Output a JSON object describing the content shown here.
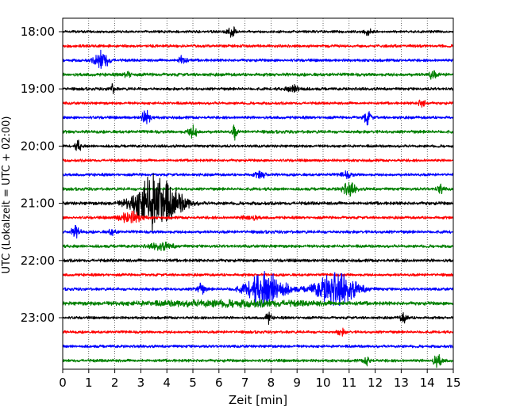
{
  "chart_data": {
    "type": "line",
    "xlabel": "Zeit  [min]",
    "ylabel": "UTC (Lokalzeit = UTC + 02:00)",
    "xlim": [
      0,
      15
    ],
    "x_ticks": [
      "0",
      "1",
      "2",
      "3",
      "4",
      "5",
      "6",
      "7",
      "8",
      "9",
      "10",
      "11",
      "12",
      "13",
      "14",
      "15"
    ],
    "y_ticks": [
      "18:00",
      "19:00",
      "20:00",
      "21:00",
      "22:00",
      "23:00"
    ],
    "grid": "vertical dotted",
    "trace_interval_minutes": 15,
    "start_time": "18:00",
    "trace_colors": [
      "#000000",
      "#ff0000",
      "#0000ff",
      "#008000"
    ],
    "traces": [
      {
        "start": "18:00",
        "color": "#000000",
        "noise": 0.32,
        "events": [
          {
            "t": 6.5,
            "amp": 1.3,
            "dur": 0.1
          },
          {
            "t": 11.7,
            "amp": 0.9,
            "dur": 0.1
          }
        ]
      },
      {
        "start": "18:15",
        "color": "#ff0000",
        "noise": 0.35,
        "events": []
      },
      {
        "start": "18:30",
        "color": "#0000ff",
        "noise": 0.35,
        "events": [
          {
            "t": 1.5,
            "amp": 2.3,
            "dur": 0.18
          },
          {
            "t": 4.6,
            "amp": 1.3,
            "dur": 0.1
          }
        ]
      },
      {
        "start": "18:45",
        "color": "#008000",
        "noise": 0.4,
        "events": [
          {
            "t": 2.5,
            "amp": 0.7,
            "dur": 0.1
          },
          {
            "t": 14.2,
            "amp": 1.0,
            "dur": 0.1
          }
        ]
      },
      {
        "start": "19:00",
        "color": "#000000",
        "noise": 0.35,
        "events": [
          {
            "t": 1.9,
            "amp": 1.0,
            "dur": 0.08
          },
          {
            "t": 8.9,
            "amp": 0.8,
            "dur": 0.2
          }
        ]
      },
      {
        "start": "19:15",
        "color": "#ff0000",
        "noise": 0.33,
        "events": [
          {
            "t": 13.8,
            "amp": 1.0,
            "dur": 0.1
          }
        ]
      },
      {
        "start": "19:30",
        "color": "#0000ff",
        "noise": 0.35,
        "events": [
          {
            "t": 3.2,
            "amp": 1.6,
            "dur": 0.12
          },
          {
            "t": 11.7,
            "amp": 1.6,
            "dur": 0.1
          }
        ]
      },
      {
        "start": "19:45",
        "color": "#008000",
        "noise": 0.38,
        "events": [
          {
            "t": 5.0,
            "amp": 1.4,
            "dur": 0.12
          },
          {
            "t": 6.6,
            "amp": 1.8,
            "dur": 0.06
          }
        ]
      },
      {
        "start": "20:00",
        "color": "#000000",
        "noise": 0.33,
        "events": [
          {
            "t": 0.6,
            "amp": 1.3,
            "dur": 0.08
          }
        ]
      },
      {
        "start": "20:15",
        "color": "#ff0000",
        "noise": 0.33,
        "events": []
      },
      {
        "start": "20:30",
        "color": "#0000ff",
        "noise": 0.34,
        "events": [
          {
            "t": 7.6,
            "amp": 0.8,
            "dur": 0.15
          },
          {
            "t": 10.9,
            "amp": 0.7,
            "dur": 0.15
          }
        ]
      },
      {
        "start": "20:45",
        "color": "#008000",
        "noise": 0.36,
        "events": [
          {
            "t": 11.0,
            "amp": 1.5,
            "dur": 0.18
          },
          {
            "t": 14.5,
            "amp": 1.2,
            "dur": 0.08
          }
        ]
      },
      {
        "start": "21:00",
        "color": "#000000",
        "noise": 0.4,
        "events": [
          {
            "t": 3.55,
            "amp": 7.2,
            "dur": 0.55
          },
          {
            "t": 4.6,
            "amp": 0.7,
            "dur": 0.25
          }
        ]
      },
      {
        "start": "21:15",
        "color": "#ff0000",
        "noise": 0.34,
        "events": [
          {
            "t": 2.6,
            "amp": 1.4,
            "dur": 0.3
          },
          {
            "t": 7.2,
            "amp": 0.6,
            "dur": 0.2
          }
        ]
      },
      {
        "start": "21:30",
        "color": "#0000ff",
        "noise": 0.36,
        "events": [
          {
            "t": 0.5,
            "amp": 1.3,
            "dur": 0.12
          },
          {
            "t": 1.9,
            "amp": 0.7,
            "dur": 0.1
          }
        ]
      },
      {
        "start": "21:45",
        "color": "#008000",
        "noise": 0.36,
        "events": [
          {
            "t": 3.8,
            "amp": 0.8,
            "dur": 0.3
          }
        ]
      },
      {
        "start": "22:00",
        "color": "#000000",
        "noise": 0.38,
        "events": []
      },
      {
        "start": "22:15",
        "color": "#ff0000",
        "noise": 0.34,
        "events": []
      },
      {
        "start": "22:30",
        "color": "#0000ff",
        "noise": 0.35,
        "events": [
          {
            "t": 5.3,
            "amp": 1.2,
            "dur": 0.12
          },
          {
            "t": 7.8,
            "amp": 4.2,
            "dur": 0.5
          },
          {
            "t": 10.5,
            "amp": 3.9,
            "dur": 0.55
          }
        ]
      },
      {
        "start": "22:45",
        "color": "#008000",
        "noise": 0.42,
        "events": [
          {
            "t": 6.5,
            "amp": 0.6,
            "dur": 2.5
          }
        ]
      },
      {
        "start": "23:00",
        "color": "#000000",
        "noise": 0.33,
        "events": [
          {
            "t": 7.9,
            "amp": 1.4,
            "dur": 0.08
          },
          {
            "t": 13.1,
            "amp": 1.1,
            "dur": 0.1
          }
        ]
      },
      {
        "start": "23:15",
        "color": "#ff0000",
        "noise": 0.33,
        "events": [
          {
            "t": 10.7,
            "amp": 0.8,
            "dur": 0.1
          }
        ]
      },
      {
        "start": "23:30",
        "color": "#0000ff",
        "noise": 0.34,
        "events": []
      },
      {
        "start": "23:45",
        "color": "#008000",
        "noise": 0.36,
        "events": [
          {
            "t": 11.7,
            "amp": 1.0,
            "dur": 0.1
          },
          {
            "t": 14.4,
            "amp": 1.5,
            "dur": 0.12
          }
        ]
      }
    ]
  }
}
